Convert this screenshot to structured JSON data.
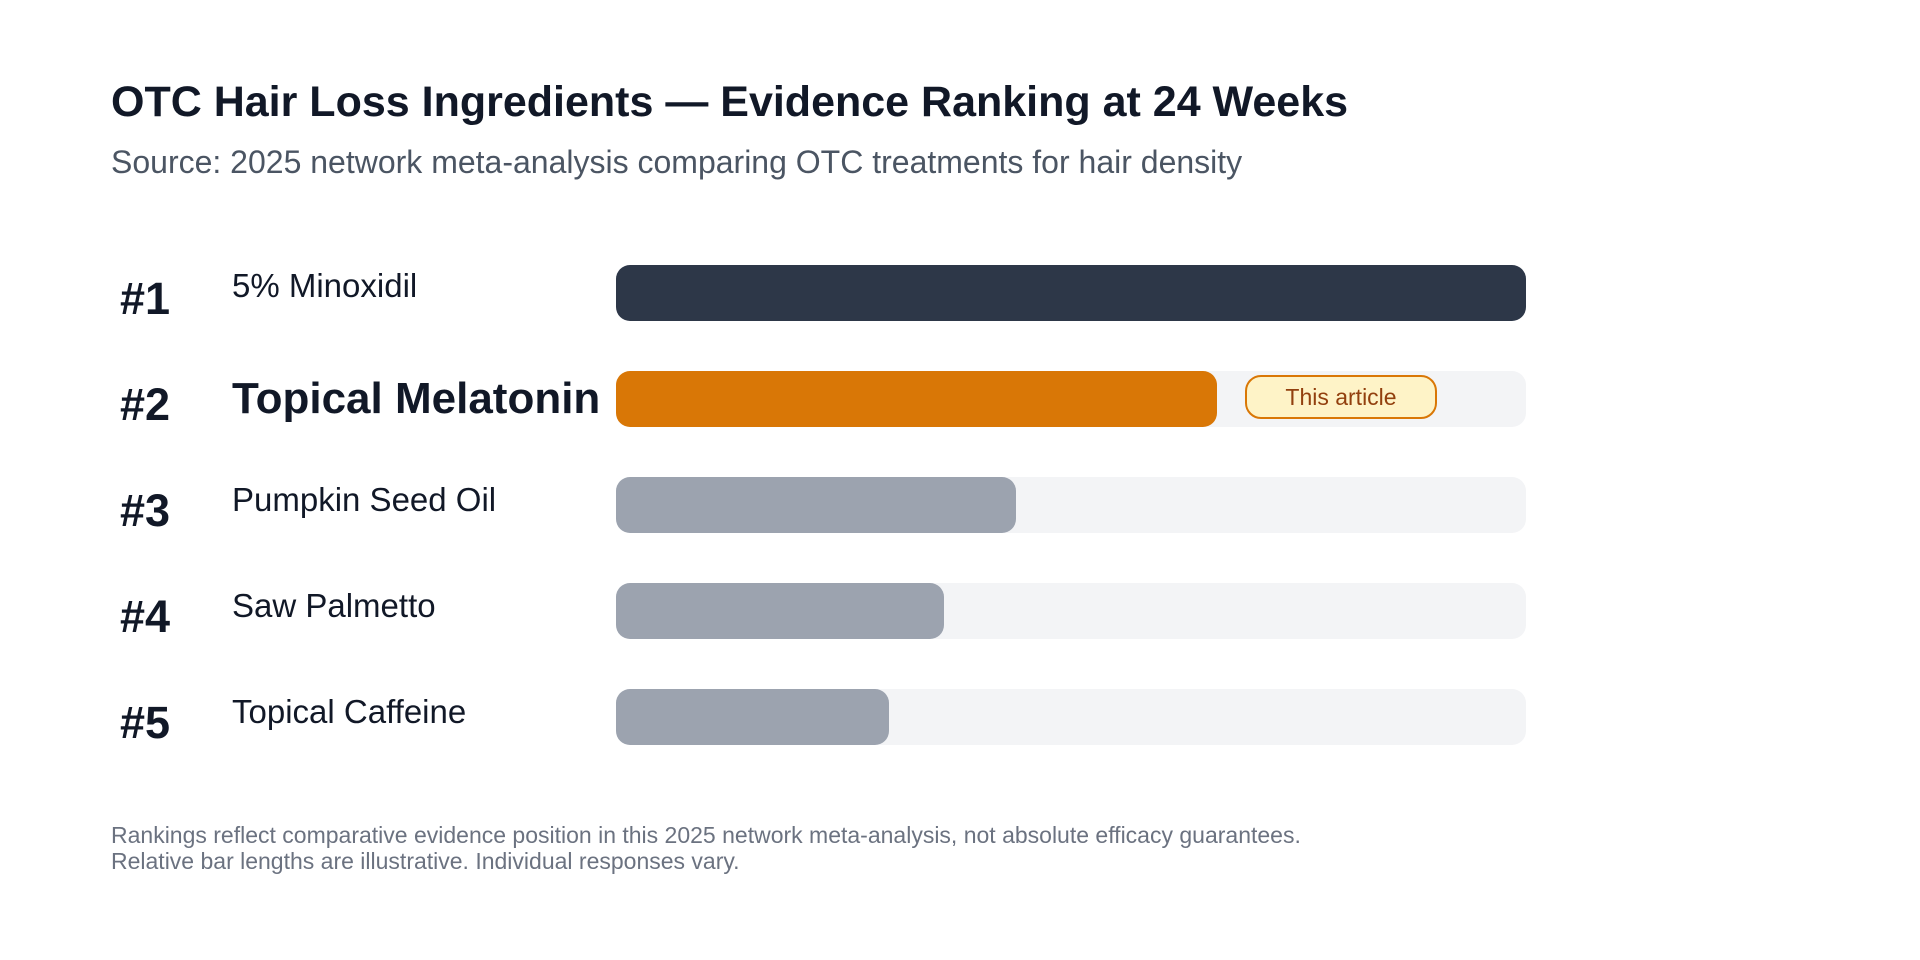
{
  "chart_data": {
    "type": "bar",
    "orientation": "horizontal",
    "title": "OTC Hair Loss Ingredients — Evidence Ranking at 24 Weeks",
    "subtitle": "Source: 2025 network meta-analysis comparing OTC treatments for hair density",
    "xlim": [
      0,
      100
    ],
    "grid": false,
    "legend": "none",
    "items": [
      {
        "rank": "#1",
        "label": "5% Minoxidil",
        "value": 100,
        "color": "#2d3748",
        "highlight": false
      },
      {
        "rank": "#2",
        "label": "Topical Melatonin",
        "value": 66,
        "color": "#d97706",
        "highlight": true,
        "badge": "This article"
      },
      {
        "rank": "#3",
        "label": "Pumpkin Seed Oil",
        "value": 44,
        "color": "#9ca3af",
        "highlight": false
      },
      {
        "rank": "#4",
        "label": "Saw Palmetto",
        "value": 36,
        "color": "#9ca3af",
        "highlight": false
      },
      {
        "rank": "#5",
        "label": "Topical Caffeine",
        "value": 30,
        "color": "#9ca3af",
        "highlight": false
      }
    ],
    "footnotes": [
      "Rankings reflect comparative evidence position in this 2025 network meta-analysis, not absolute efficacy guarantees.",
      "Relative bar lengths are illustrative. Individual responses vary."
    ],
    "track_color": "#f3f4f6"
  }
}
